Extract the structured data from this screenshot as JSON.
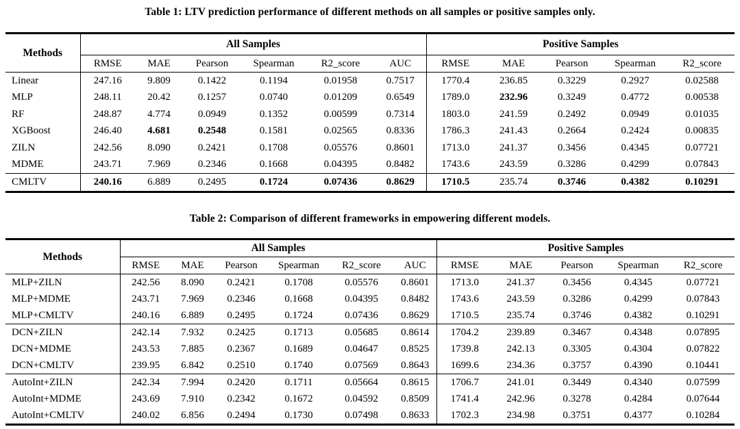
{
  "table1": {
    "title": "Table 1: LTV prediction performance of different methods on all samples or positive samples only.",
    "methods_header": "Methods",
    "group_headers": [
      "All Samples",
      "Positive Samples"
    ],
    "all_samples_cols": [
      "RMSE",
      "MAE",
      "Pearson",
      "Spearman",
      "R2_score",
      "AUC"
    ],
    "positive_samples_cols": [
      "RMSE",
      "MAE",
      "Pearson",
      "Spearman",
      "R2_score"
    ],
    "rows": [
      {
        "method": "Linear",
        "all": [
          "247.16",
          "9.809",
          "0.1422",
          "0.1194",
          "0.01958",
          "0.7517"
        ],
        "pos": [
          "1770.4",
          "236.85",
          "0.3229",
          "0.2927",
          "0.02588"
        ],
        "bold_all": [],
        "bold_pos": [],
        "group_start": false
      },
      {
        "method": "MLP",
        "all": [
          "248.11",
          "20.42",
          "0.1257",
          "0.0740",
          "0.01209",
          "0.6549"
        ],
        "pos": [
          "1789.0",
          "232.96",
          "0.3249",
          "0.4772",
          "0.00538"
        ],
        "bold_all": [],
        "bold_pos": [
          1
        ],
        "group_start": false
      },
      {
        "method": "RF",
        "all": [
          "248.87",
          "4.774",
          "0.0949",
          "0.1352",
          "0.00599",
          "0.7314"
        ],
        "pos": [
          "1803.0",
          "241.59",
          "0.2492",
          "0.0949",
          "0.01035"
        ],
        "bold_all": [],
        "bold_pos": [],
        "group_start": false
      },
      {
        "method": "XGBoost",
        "all": [
          "246.40",
          "4.681",
          "0.2548",
          "0.1581",
          "0.02565",
          "0.8336"
        ],
        "pos": [
          "1786.3",
          "241.43",
          "0.2664",
          "0.2424",
          "0.00835"
        ],
        "bold_all": [
          1,
          2
        ],
        "bold_pos": [],
        "group_start": false
      },
      {
        "method": "ZILN",
        "all": [
          "242.56",
          "8.090",
          "0.2421",
          "0.1708",
          "0.05576",
          "0.8601"
        ],
        "pos": [
          "1713.0",
          "241.37",
          "0.3456",
          "0.4345",
          "0.07721"
        ],
        "bold_all": [],
        "bold_pos": [],
        "group_start": false
      },
      {
        "method": "MDME",
        "all": [
          "243.71",
          "7.969",
          "0.2346",
          "0.1668",
          "0.04395",
          "0.8482"
        ],
        "pos": [
          "1743.6",
          "243.59",
          "0.3286",
          "0.4299",
          "0.07843"
        ],
        "bold_all": [],
        "bold_pos": [],
        "group_start": false
      },
      {
        "method": "CMLTV",
        "all": [
          "240.16",
          "6.889",
          "0.2495",
          "0.1724",
          "0.07436",
          "0.8629"
        ],
        "pos": [
          "1710.5",
          "235.74",
          "0.3746",
          "0.4382",
          "0.10291"
        ],
        "bold_all": [
          0,
          3,
          4,
          5
        ],
        "bold_pos": [
          0,
          2,
          3,
          4
        ],
        "group_start": true
      }
    ]
  },
  "table2": {
    "title": "Table 2: Comparison of different frameworks in empowering different models.",
    "methods_header": "Methods",
    "group_headers": [
      "All Samples",
      "Positive Samples"
    ],
    "all_samples_cols": [
      "RMSE",
      "MAE",
      "Pearson",
      "Spearman",
      "R2_score",
      "AUC"
    ],
    "positive_samples_cols": [
      "RMSE",
      "MAE",
      "Pearson",
      "Spearman",
      "R2_score"
    ],
    "rows": [
      {
        "method": "MLP+ZILN",
        "all": [
          "242.56",
          "8.090",
          "0.2421",
          "0.1708",
          "0.05576",
          "0.8601"
        ],
        "pos": [
          "1713.0",
          "241.37",
          "0.3456",
          "0.4345",
          "0.07721"
        ],
        "bold_all": [],
        "bold_pos": [],
        "group_start": false
      },
      {
        "method": "MLP+MDME",
        "all": [
          "243.71",
          "7.969",
          "0.2346",
          "0.1668",
          "0.04395",
          "0.8482"
        ],
        "pos": [
          "1743.6",
          "243.59",
          "0.3286",
          "0.4299",
          "0.07843"
        ],
        "bold_all": [],
        "bold_pos": [],
        "group_start": false
      },
      {
        "method": "MLP+CMLTV",
        "all": [
          "240.16",
          "6.889",
          "0.2495",
          "0.1724",
          "0.07436",
          "0.8629"
        ],
        "pos": [
          "1710.5",
          "235.74",
          "0.3746",
          "0.4382",
          "0.10291"
        ],
        "bold_all": [],
        "bold_pos": [],
        "group_start": false
      },
      {
        "method": "DCN+ZILN",
        "all": [
          "242.14",
          "7.932",
          "0.2425",
          "0.1713",
          "0.05685",
          "0.8614"
        ],
        "pos": [
          "1704.2",
          "239.89",
          "0.3467",
          "0.4348",
          "0.07895"
        ],
        "bold_all": [],
        "bold_pos": [],
        "group_start": true
      },
      {
        "method": "DCN+MDME",
        "all": [
          "243.53",
          "7.885",
          "0.2367",
          "0.1689",
          "0.04647",
          "0.8525"
        ],
        "pos": [
          "1739.8",
          "242.13",
          "0.3305",
          "0.4304",
          "0.07822"
        ],
        "bold_all": [],
        "bold_pos": [],
        "group_start": false
      },
      {
        "method": "DCN+CMLTV",
        "all": [
          "239.95",
          "6.842",
          "0.2510",
          "0.1740",
          "0.07569",
          "0.8643"
        ],
        "pos": [
          "1699.6",
          "234.36",
          "0.3757",
          "0.4390",
          "0.10441"
        ],
        "bold_all": [],
        "bold_pos": [],
        "group_start": false
      },
      {
        "method": "AutoInt+ZILN",
        "all": [
          "242.34",
          "7.994",
          "0.2420",
          "0.1711",
          "0.05664",
          "0.8615"
        ],
        "pos": [
          "1706.7",
          "241.01",
          "0.3449",
          "0.4340",
          "0.07599"
        ],
        "bold_all": [],
        "bold_pos": [],
        "group_start": true
      },
      {
        "method": "AutoInt+MDME",
        "all": [
          "243.69",
          "7.910",
          "0.2342",
          "0.1672",
          "0.04592",
          "0.8509"
        ],
        "pos": [
          "1741.4",
          "242.96",
          "0.3278",
          "0.4284",
          "0.07644"
        ],
        "bold_all": [],
        "bold_pos": [],
        "group_start": false
      },
      {
        "method": "AutoInt+CMLTV",
        "all": [
          "240.02",
          "6.856",
          "0.2494",
          "0.1730",
          "0.07498",
          "0.8633"
        ],
        "pos": [
          "1702.3",
          "234.98",
          "0.3751",
          "0.4377",
          "0.10284"
        ],
        "bold_all": [],
        "bold_pos": [],
        "group_start": false
      }
    ]
  },
  "colors": {
    "text": "#000000",
    "background": "#ffffff",
    "rule": "#000000"
  }
}
